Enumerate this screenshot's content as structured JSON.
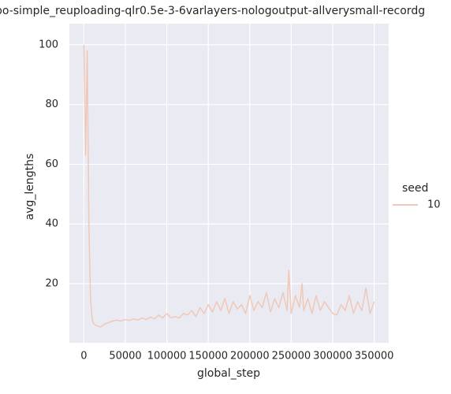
{
  "chart_data": {
    "type": "line",
    "title": "po-simple_reuploading-qlr0.5e-3-6varlayers-nologoutput-allverysmall-recordg",
    "x_label": "global_step",
    "y_label": "avg_lengths",
    "legend_title": "seed",
    "legend_position": "right",
    "grid": true,
    "xlim": [
      -17500,
      367500
    ],
    "ylim": [
      0.2,
      107.1
    ],
    "xticks": [
      0,
      50000,
      100000,
      150000,
      200000,
      250000,
      300000,
      350000
    ],
    "yticks": [
      20,
      40,
      60,
      80,
      100
    ],
    "x": [
      0,
      2000,
      4000,
      6000,
      8000,
      10000,
      12000,
      15000,
      20000,
      25000,
      30000,
      35000,
      40000,
      45000,
      50000,
      55000,
      60000,
      65000,
      70000,
      75000,
      80000,
      85000,
      90000,
      95000,
      100000,
      105000,
      110000,
      115000,
      120000,
      125000,
      130000,
      135000,
      140000,
      145000,
      150000,
      155000,
      160000,
      165000,
      170000,
      175000,
      180000,
      185000,
      190000,
      195000,
      200000,
      205000,
      210000,
      215000,
      220000,
      225000,
      230000,
      235000,
      240000,
      245000,
      247000,
      250000,
      255000,
      260000,
      263000,
      265000,
      270000,
      275000,
      280000,
      285000,
      290000,
      295000,
      300000,
      305000,
      310000,
      315000,
      320000,
      325000,
      330000,
      335000,
      340000,
      345000,
      350000
    ],
    "series": [
      {
        "name": "10",
        "color": "#f0c8b8",
        "values": [
          100,
          63,
          98,
          40,
          15,
          8,
          6.5,
          6,
          5.5,
          6.5,
          7,
          7.5,
          7.8,
          7.5,
          8,
          7.7,
          8.2,
          7.8,
          8.5,
          8,
          8.8,
          8.2,
          9.5,
          8.5,
          10,
          8.5,
          9,
          8.5,
          10,
          9.5,
          11,
          9,
          12,
          10,
          13,
          10.5,
          14,
          11,
          15,
          10,
          14,
          11.5,
          13,
          10,
          16,
          11,
          14,
          12,
          17,
          10.5,
          15,
          12,
          17,
          11,
          24.5,
          10,
          16,
          12,
          20,
          11,
          15,
          10,
          16,
          11,
          14,
          12,
          10,
          9.5,
          13,
          11,
          16,
          10,
          14,
          11,
          18.5,
          10,
          14
        ]
      }
    ]
  }
}
